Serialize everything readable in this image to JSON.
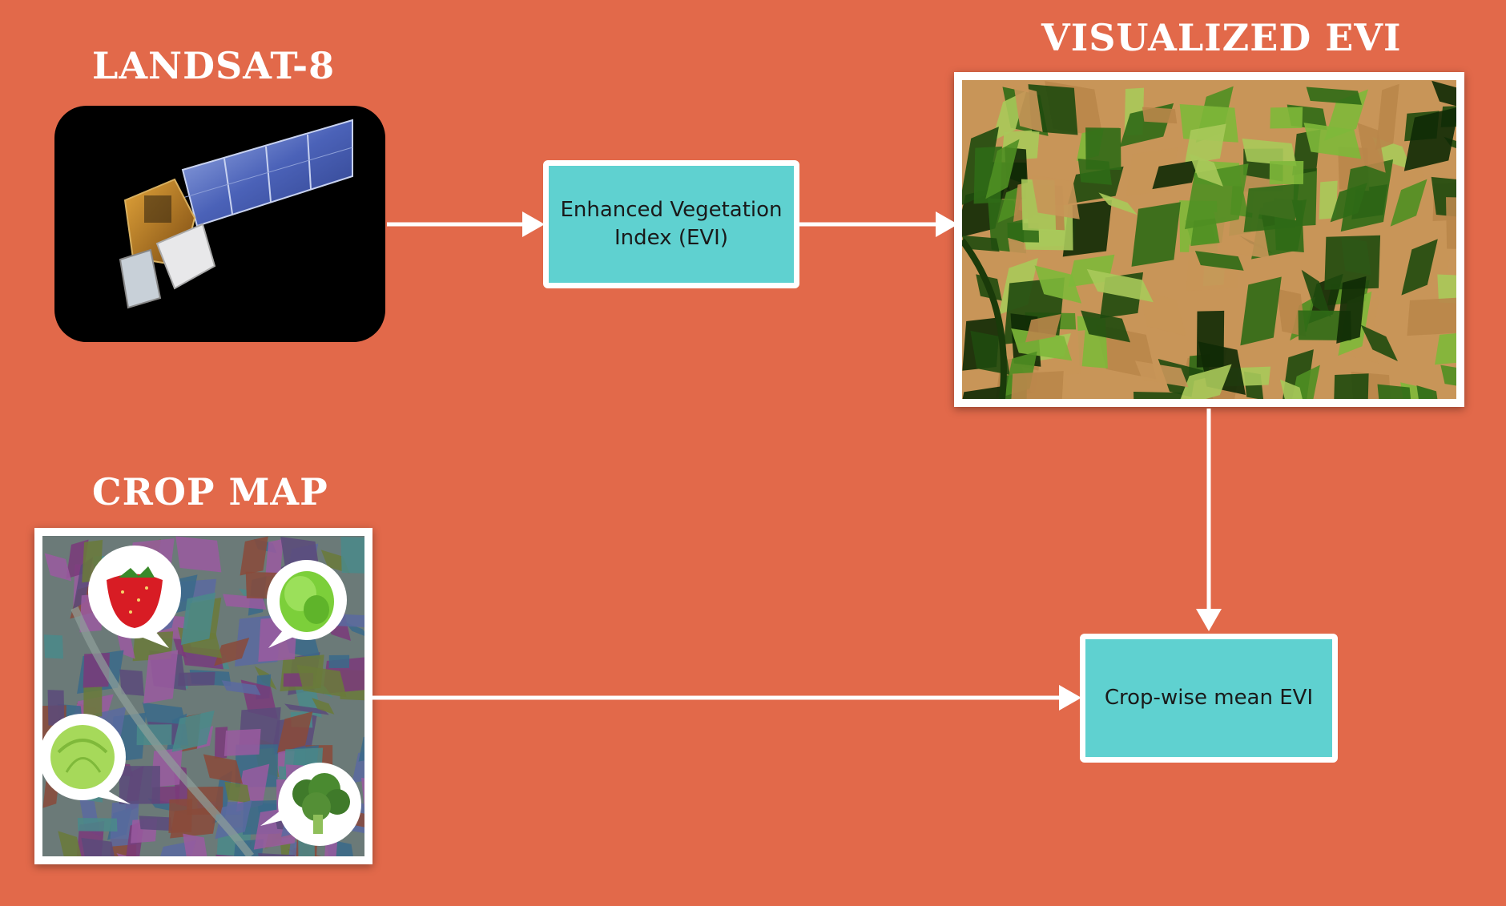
{
  "titles": {
    "landsat": "LANDSAT-8",
    "evi_image": "VISUALIZED EVI",
    "crop_map": "CROP MAP"
  },
  "boxes": {
    "evi": [
      "Enhanced Vegetation",
      "Index (EVI)"
    ],
    "crop_mean": "Crop-wise mean EVI"
  },
  "colors": {
    "background": "#E2694A",
    "box_fill": "#5FD1D0",
    "arrow": "#FFFFFF"
  },
  "icons": {
    "satellite": "landsat-satellite-image",
    "evi_map": "evi-false-color-field-map",
    "crop_map": "crop-classification-map",
    "strawberry": "strawberry-icon",
    "lettuce": "lettuce-icon",
    "cabbage": "cabbage-icon",
    "broccoli": "broccoli-icon"
  }
}
